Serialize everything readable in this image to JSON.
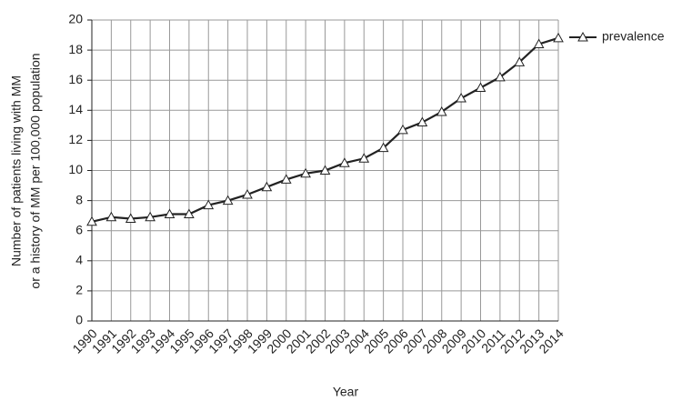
{
  "chart_data": {
    "type": "line",
    "ylabel": [
      "Number of patients living with MM",
      "or a history of MM per 100,000 population"
    ],
    "xlabel": "Year",
    "categories": [
      "1990",
      "1991",
      "1992",
      "1993",
      "1994",
      "1995",
      "1996",
      "1997",
      "1998",
      "1999",
      "2000",
      "2001",
      "2002",
      "2003",
      "2004",
      "2005",
      "2006",
      "2007",
      "2008",
      "2009",
      "2010",
      "2011",
      "2012",
      "2013",
      "2014"
    ],
    "series": [
      {
        "name": "prevalence",
        "color": "#222222",
        "marker": "triangle",
        "values": [
          6.6,
          6.9,
          6.8,
          6.9,
          7.1,
          7.1,
          7.7,
          8.0,
          8.4,
          8.9,
          9.4,
          9.8,
          10.0,
          10.5,
          10.8,
          11.5,
          12.7,
          13.2,
          13.9,
          14.8,
          15.5,
          16.2,
          17.2,
          18.4,
          18.8
        ]
      }
    ],
    "ylim": [
      0,
      20
    ],
    "yticks": [
      0,
      2,
      4,
      6,
      8,
      10,
      12,
      14,
      16,
      18,
      20
    ],
    "grid": true,
    "legend": "right"
  }
}
